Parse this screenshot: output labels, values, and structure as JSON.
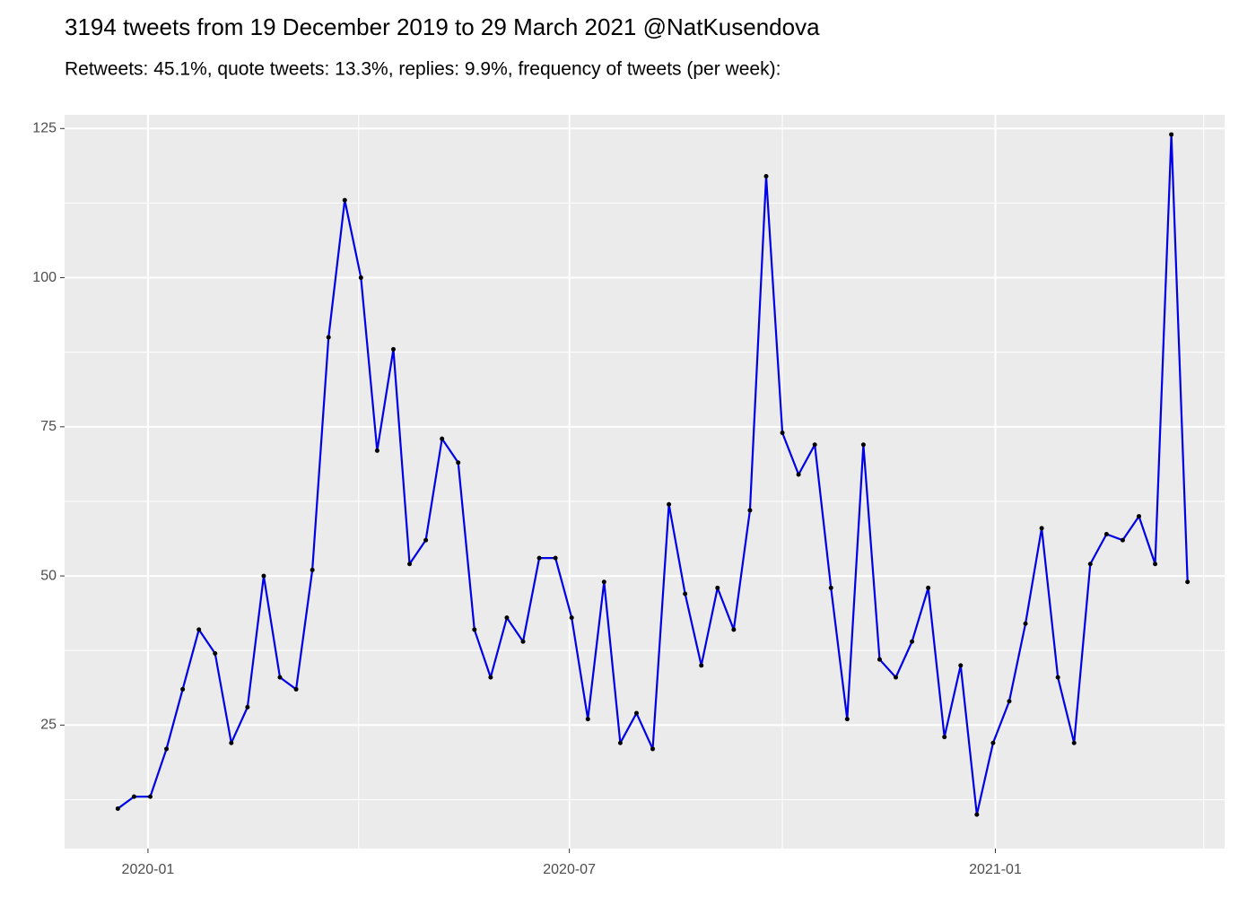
{
  "chart_data": {
    "type": "line",
    "title": "3194 tweets from 19 December 2019 to 29 March 2021 @NatKusendova",
    "subtitle": "Retweets: 45.1%, quote tweets: 13.3%, replies: 9.9%, frequency of tweets (per week):",
    "x": [
      "2019-12-19",
      "2019-12-26",
      "2020-01-02",
      "2020-01-09",
      "2020-01-16",
      "2020-01-23",
      "2020-01-30",
      "2020-02-06",
      "2020-02-13",
      "2020-02-20",
      "2020-02-27",
      "2020-03-05",
      "2020-03-12",
      "2020-03-19",
      "2020-03-26",
      "2020-04-02",
      "2020-04-09",
      "2020-04-16",
      "2020-04-23",
      "2020-04-30",
      "2020-05-07",
      "2020-05-14",
      "2020-05-21",
      "2020-05-28",
      "2020-06-04",
      "2020-06-11",
      "2020-06-18",
      "2020-06-25",
      "2020-07-02",
      "2020-07-09",
      "2020-07-16",
      "2020-07-23",
      "2020-07-30",
      "2020-08-06",
      "2020-08-13",
      "2020-08-20",
      "2020-08-27",
      "2020-09-03",
      "2020-09-10",
      "2020-09-17",
      "2020-09-24",
      "2020-10-01",
      "2020-10-08",
      "2020-10-15",
      "2020-10-22",
      "2020-10-29",
      "2020-11-05",
      "2020-11-12",
      "2020-11-19",
      "2020-11-26",
      "2020-12-03",
      "2020-12-10",
      "2020-12-17",
      "2020-12-24",
      "2020-12-31",
      "2021-01-07",
      "2021-01-14",
      "2021-01-21",
      "2021-01-28",
      "2021-02-04",
      "2021-02-11",
      "2021-02-18",
      "2021-02-25",
      "2021-03-04",
      "2021-03-11",
      "2021-03-18",
      "2021-03-25"
    ],
    "series": [
      {
        "color": "#0000e6",
        "point_color": "#000000",
        "values": [
          11,
          13,
          13,
          21,
          31,
          41,
          37,
          22,
          28,
          50,
          33,
          31,
          51,
          90,
          113,
          100,
          71,
          88,
          52,
          56,
          73,
          69,
          41,
          33,
          43,
          39,
          53,
          53,
          43,
          26,
          49,
          22,
          27,
          21,
          62,
          47,
          35,
          48,
          41,
          61,
          117,
          74,
          67,
          72,
          48,
          26,
          72,
          36,
          33,
          39,
          48,
          23,
          35,
          10,
          22,
          29,
          42,
          58,
          33,
          22,
          52,
          57,
          56,
          60,
          52,
          124,
          49
        ]
      }
    ],
    "xlim": [
      "2019-11-26",
      "2021-04-10"
    ],
    "xticks": [
      {
        "value": "2020-01-01",
        "label": "2020-01"
      },
      {
        "value": "2020-07-01",
        "label": "2020-07"
      },
      {
        "value": "2021-01-01",
        "label": "2021-01"
      }
    ],
    "x_minor_grid": [
      "2020-04-01",
      "2020-10-01",
      "2021-04-01"
    ],
    "ylim": [
      4.3,
      127.3
    ],
    "yticks": [
      25,
      50,
      75,
      100,
      125
    ],
    "y_minor_grid": [
      12.5,
      37.5,
      62.5,
      87.5,
      112.5
    ],
    "grid": true
  }
}
